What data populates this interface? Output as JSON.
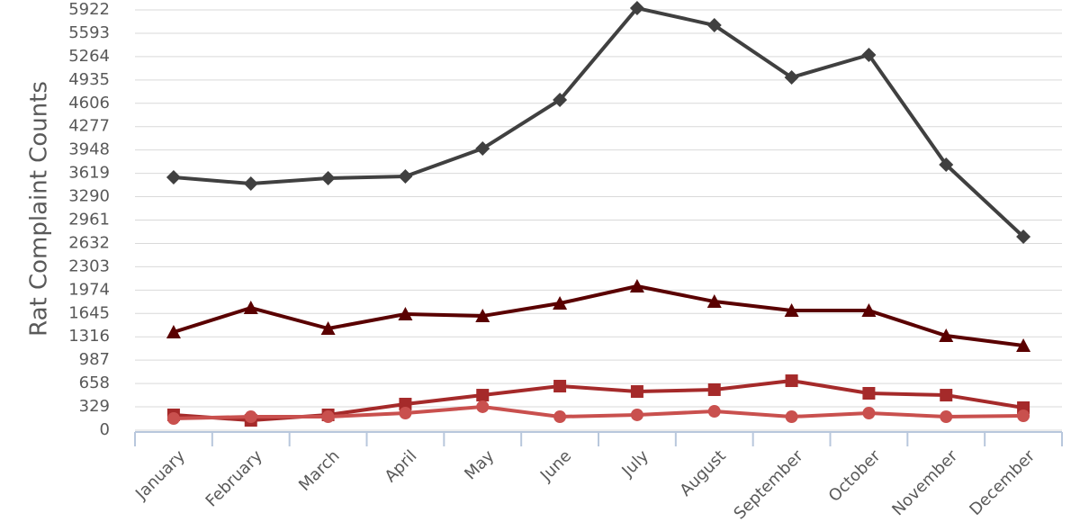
{
  "chart_data": {
    "type": "line",
    "y_label": "Rat Complaint Counts",
    "categories": [
      "January",
      "February",
      "March",
      "April",
      "May",
      "June",
      "July",
      "August",
      "September",
      "October",
      "November",
      "December"
    ],
    "series": [
      {
        "color": "#404040",
        "marker": "diamond",
        "values": [
          3563,
          3474,
          3550,
          3576,
          3969,
          4654,
          5947,
          5706,
          4971,
          5288,
          3741,
          2726
        ]
      },
      {
        "color": "#5a0000",
        "marker": "triangle",
        "values": [
          1382,
          1724,
          1433,
          1636,
          1610,
          1788,
          2029,
          1813,
          1686,
          1686,
          1331,
          1192
        ]
      },
      {
        "color": "#a52a2a",
        "marker": "square",
        "values": [
          216,
          139,
          216,
          368,
          494,
          621,
          545,
          571,
          697,
          520,
          494,
          317
        ]
      },
      {
        "color": "#c9504e",
        "marker": "circle",
        "values": [
          165,
          190,
          190,
          241,
          330,
          190,
          216,
          266,
          190,
          241,
          190,
          203
        ]
      }
    ],
    "ylim": [
      0,
      5922
    ],
    "yticks": [
      0,
      329,
      658,
      987,
      1316,
      1645,
      1974,
      2303,
      2632,
      2961,
      3290,
      3619,
      3948,
      4277,
      4606,
      4935,
      5264,
      5593,
      5922
    ],
    "grid": true
  }
}
